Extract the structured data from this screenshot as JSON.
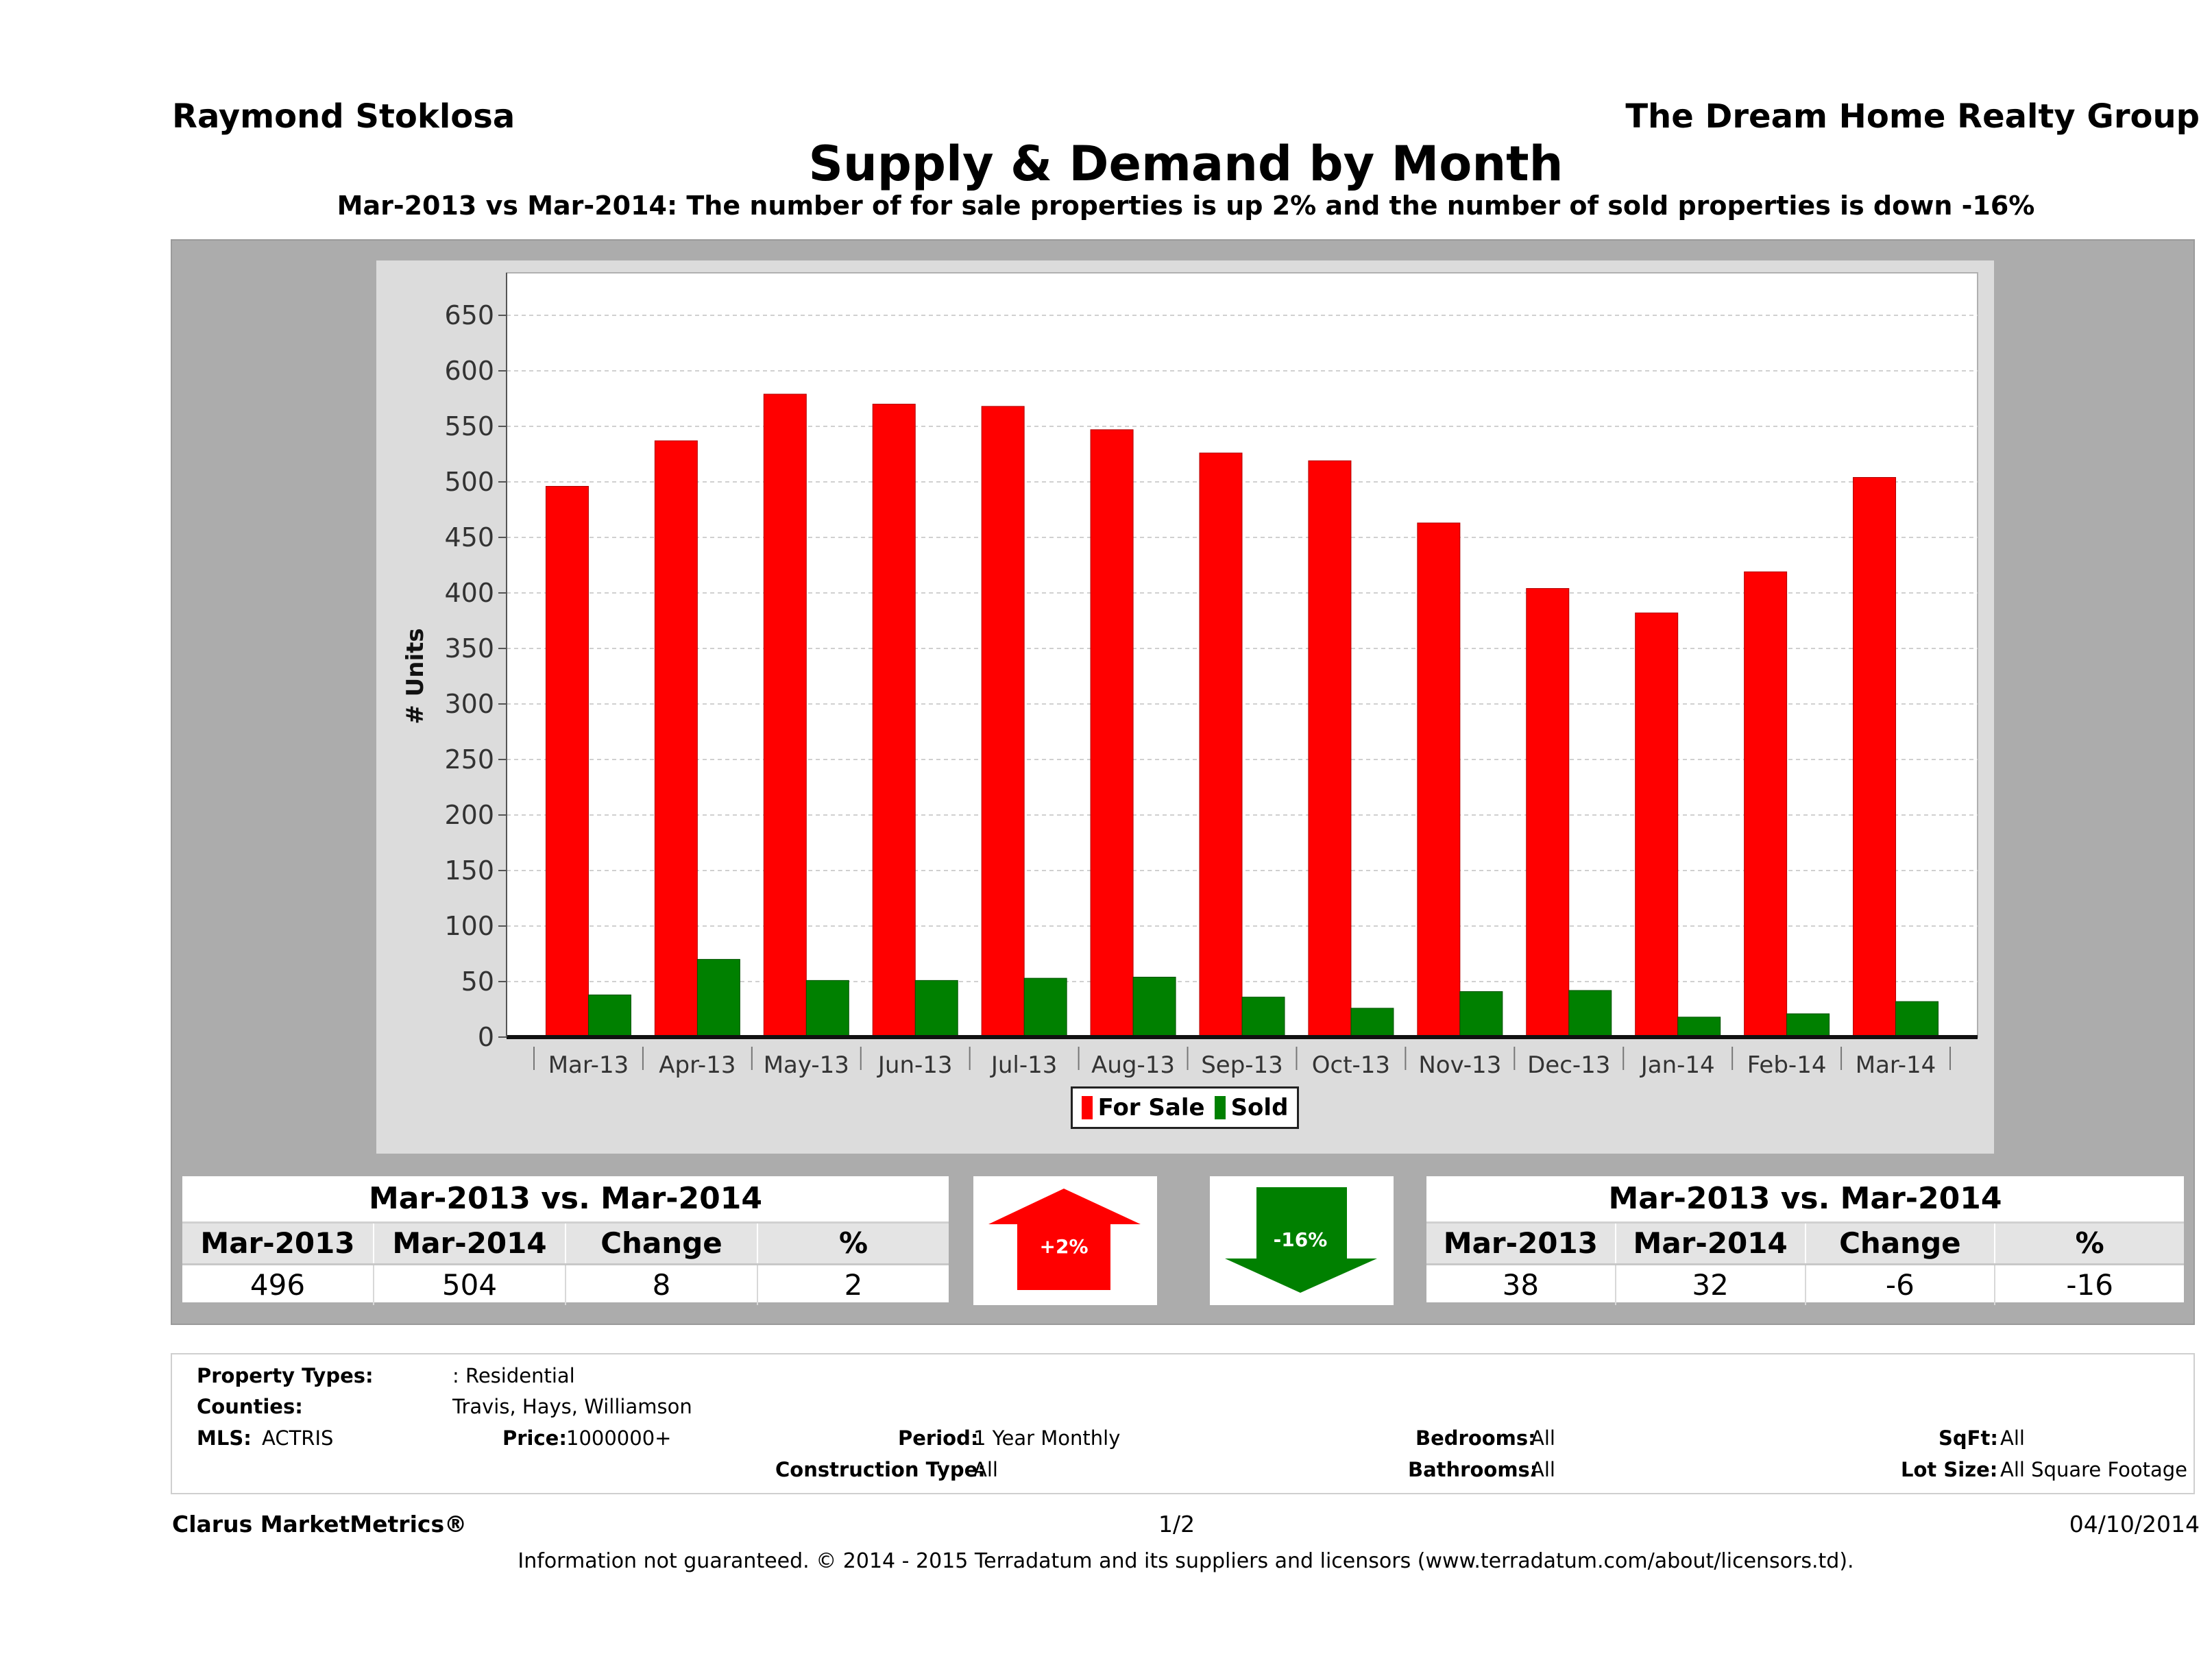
{
  "header": {
    "agent": "Raymond Stoklosa",
    "company": "The Dream Home Realty Group"
  },
  "chart_data": {
    "type": "bar",
    "title": "Supply & Demand by Month",
    "subtitle": "Mar-2013 vs Mar-2014: The number of for sale properties is up 2% and the number of sold properties is down -16%",
    "ylabel": "# Units",
    "xlabel": "",
    "ylim": [
      0,
      650
    ],
    "yticks": [
      0,
      50,
      100,
      150,
      200,
      250,
      300,
      350,
      400,
      450,
      500,
      550,
      600,
      650
    ],
    "grid": true,
    "legend_position": "bottom",
    "categories": [
      "Mar-13",
      "Apr-13",
      "May-13",
      "Jun-13",
      "Jul-13",
      "Aug-13",
      "Sep-13",
      "Oct-13",
      "Nov-13",
      "Dec-13",
      "Jan-14",
      "Feb-14",
      "Mar-14"
    ],
    "series": [
      {
        "name": "For Sale",
        "color": "#ff0000",
        "values": [
          496,
          537,
          579,
          570,
          568,
          547,
          526,
          519,
          463,
          404,
          382,
          419,
          504
        ]
      },
      {
        "name": "Sold",
        "color": "#008000",
        "values": [
          38,
          70,
          51,
          51,
          53,
          54,
          36,
          26,
          41,
          42,
          18,
          21,
          32
        ]
      }
    ]
  },
  "legend": {
    "for_sale": "For Sale",
    "sold": "Sold"
  },
  "for_sale_stats": {
    "title": "Mar-2013 vs. Mar-2014",
    "headers": [
      "Mar-2013",
      "Mar-2014",
      "Change",
      "%"
    ],
    "values": [
      "496",
      "504",
      "8",
      "2"
    ]
  },
  "sold_stats": {
    "title": "Mar-2013 vs. Mar-2014",
    "headers": [
      "Mar-2013",
      "Mar-2014",
      "Change",
      "%"
    ],
    "values": [
      "38",
      "32",
      "-6",
      "-16"
    ]
  },
  "arrows": {
    "up_label": "+2%",
    "down_label": "-16%",
    "up_color": "#ff0000",
    "down_color": "#008000"
  },
  "filters": {
    "property_types_label": "Property Types:",
    "property_types_value": ": Residential",
    "counties_label": "Counties:",
    "counties_value": "Travis, Hays, Williamson",
    "mls_label": "MLS:",
    "mls_value": "ACTRIS",
    "price_label": "Price:",
    "price_value": "1000000+",
    "period_label": "Period:",
    "period_value": "1 Year Monthly",
    "construction_label": "Construction Type:",
    "construction_value": "All",
    "bedrooms_label": "Bedrooms:",
    "bedrooms_value": "All",
    "bathrooms_label": "Bathrooms:",
    "bathrooms_value": "All",
    "sqft_label": "SqFt:",
    "sqft_value": "All",
    "lot_label": "Lot Size:",
    "lot_value": "All Square Footage"
  },
  "footer": {
    "brand": "Clarus MarketMetrics®",
    "page": "1/2",
    "date": "04/10/2014",
    "disclaimer": "Information not guaranteed. © 2014 - 2015 Terradatum and its suppliers and licensors (www.terradatum.com/about/licensors.td)."
  }
}
